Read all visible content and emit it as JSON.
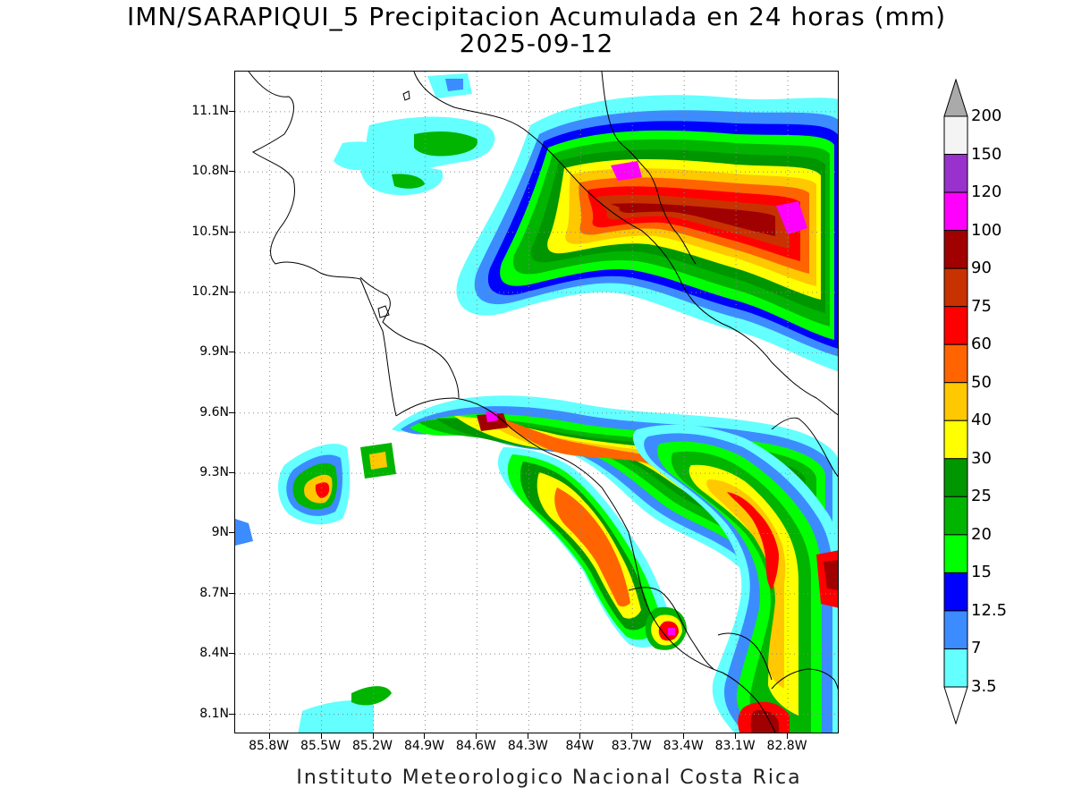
{
  "title": {
    "line1": "IMN/SARAPIQUI_5 Precipitacion Acumulada en 24 horas (mm)",
    "line2": "2025-09-12"
  },
  "footer": "Instituto Meteorologico Nacional Costa Rica",
  "axes": {
    "lat_labels": [
      "11.1N",
      "10.8N",
      "10.5N",
      "10.2N",
      "9.9N",
      "9.6N",
      "9.3N",
      "9N",
      "8.7N",
      "8.4N",
      "8.1N"
    ],
    "lon_labels": [
      "85.8W",
      "85.5W",
      "85.2W",
      "84.9W",
      "84.6W",
      "84.3W",
      "84W",
      "83.7W",
      "83.4W",
      "83.1W",
      "82.8W"
    ],
    "lat_values": [
      11.1,
      10.8,
      10.5,
      10.2,
      9.9,
      9.6,
      9.3,
      9.0,
      8.7,
      8.4,
      8.1
    ],
    "lon_values": [
      -85.8,
      -85.5,
      -85.2,
      -84.9,
      -84.6,
      -84.3,
      -84.0,
      -83.7,
      -83.4,
      -83.1,
      -82.8
    ],
    "lat_range": [
      8.0,
      11.3
    ],
    "lon_range": [
      -86.0,
      -82.5
    ],
    "grid": "dotted"
  },
  "colorbar": {
    "labels": [
      "200",
      "150",
      "120",
      "100",
      "90",
      "75",
      "60",
      "50",
      "40",
      "30",
      "25",
      "20",
      "15",
      "12.5",
      "7",
      "3.5"
    ],
    "colors": [
      "#f4f4f4",
      "#9932cc",
      "#ff00ff",
      "#a00000",
      "#c83200",
      "#ff0000",
      "#ff6400",
      "#ffc800",
      "#ffff00",
      "#009600",
      "#00b400",
      "#00ff00",
      "#0000ff",
      "#3c8cff",
      "#64ffff"
    ],
    "top_color": "#aaaaaa",
    "bottom_color": "#ffffff"
  }
}
